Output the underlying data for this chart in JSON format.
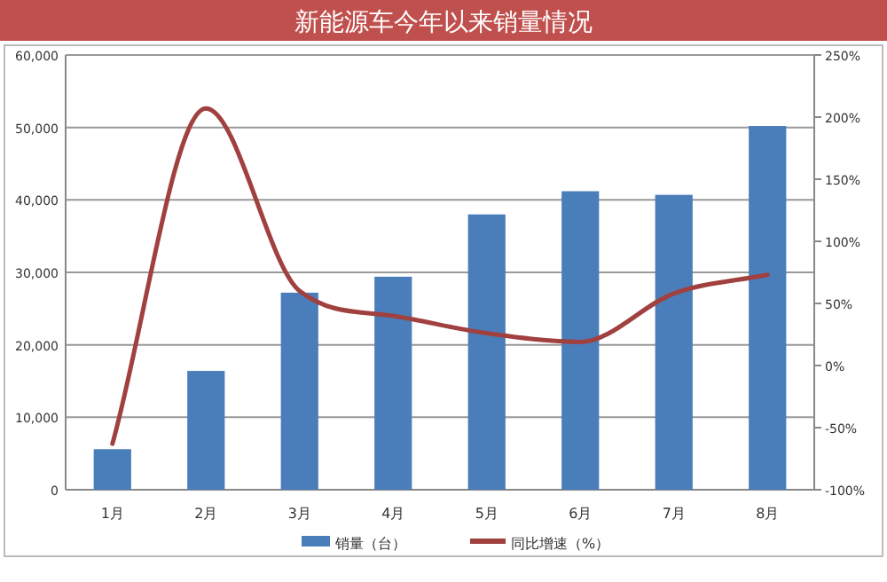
{
  "chart_data": {
    "type": "bar",
    "title": "新能源车今年以来销量情况",
    "categories": [
      "1月",
      "2月",
      "3月",
      "4月",
      "5月",
      "6月",
      "7月",
      "8月"
    ],
    "series": [
      {
        "name": "销量（台）",
        "color": "#4a7ebb",
        "values": [
          5600,
          16400,
          27200,
          29400,
          38000,
          41200,
          40700,
          50200
        ]
      },
      {
        "name": "同比增速（%）",
        "type": "line",
        "axis": "y2",
        "color": "#a0403f",
        "marker": "none",
        "values": [
          -63,
          207,
          60,
          40,
          26,
          19,
          58,
          73
        ]
      }
    ],
    "ylim": [
      0,
      60000
    ],
    "yticks": [
      0,
      {
        "value": 10000,
        "label": "10,000"
      },
      {
        "value": 20000,
        "label": "20,000"
      },
      {
        "value": 30000,
        "label": "30,000"
      },
      {
        "value": 40000,
        "label": "40,000"
      },
      {
        "value": 50000,
        "label": "50,000"
      },
      {
        "value": 60000,
        "label": "60,000"
      }
    ],
    "y2lim": [
      -100,
      250
    ],
    "y2ticks": [
      {
        "value": -100,
        "label": "-100%"
      },
      {
        "value": -50,
        "label": "-50%"
      },
      {
        "value": 0,
        "label": "0%"
      },
      {
        "value": 50,
        "label": "50%"
      },
      {
        "value": 100,
        "label": "100%"
      },
      {
        "value": 150,
        "label": "150%"
      },
      {
        "value": 200,
        "label": "200%"
      },
      {
        "value": 250,
        "label": "250%"
      }
    ],
    "grid": "y",
    "legend": "bottom"
  }
}
